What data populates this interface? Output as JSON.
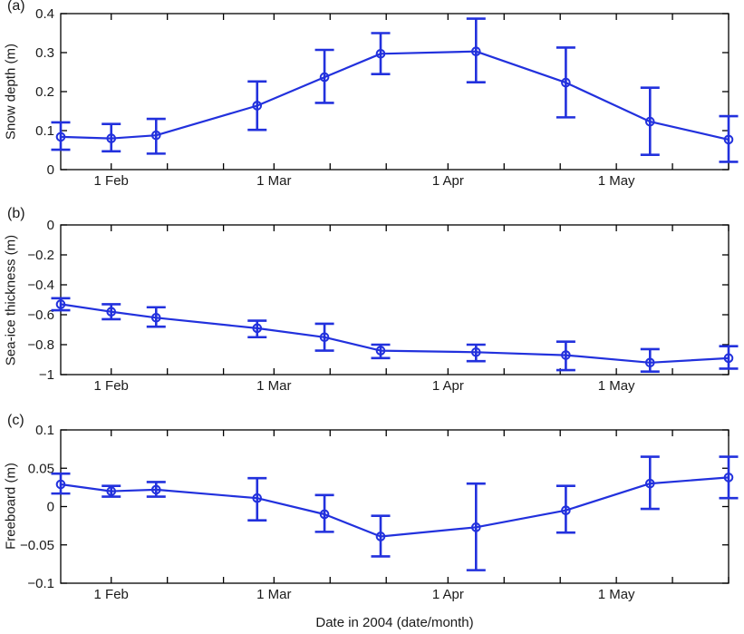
{
  "figure": {
    "background": "#ffffff",
    "accent_color": "#2231dd",
    "axis_color": "#000000",
    "text_color": "#1a1a1a"
  },
  "x_axis": {
    "label": "Date in 2004 (date/month)",
    "xlim_days": [
      23,
      142
    ],
    "major_ticks": [
      {
        "day": 32,
        "label": "1 Feb"
      },
      {
        "day": 61,
        "label": "1 Mar"
      },
      {
        "day": 92,
        "label": "1 Apr"
      },
      {
        "day": 122,
        "label": "1 May"
      }
    ],
    "minor_tick_days": [
      42,
      52,
      71,
      81,
      102,
      112,
      132,
      142
    ]
  },
  "chart_data": [
    {
      "type": "line",
      "panel_label": "(a)",
      "ylabel": "Snow depth (m)",
      "ylim": [
        0,
        0.4
      ],
      "yticks": [
        0,
        0.1,
        0.2,
        0.3,
        0.4
      ],
      "ytick_labels": [
        "0",
        "0.1",
        "0.2",
        "0.3",
        "0.4"
      ],
      "x_dates": [
        "23 Jan",
        "1 Feb",
        "9 Feb",
        "27 Feb",
        "10 Mar",
        "20 Mar",
        "6 Apr",
        "22 Apr",
        "7 May",
        "21 May"
      ],
      "x_days": [
        23,
        32,
        40,
        58,
        70,
        80,
        97,
        113,
        128,
        142
      ],
      "values": [
        0.084,
        0.08,
        0.088,
        0.164,
        0.237,
        0.297,
        0.303,
        0.223,
        0.123,
        0.077
      ],
      "err_high": [
        0.121,
        0.117,
        0.13,
        0.226,
        0.307,
        0.35,
        0.387,
        0.313,
        0.21,
        0.137
      ],
      "err_low": [
        0.051,
        0.047,
        0.041,
        0.102,
        0.171,
        0.245,
        0.224,
        0.134,
        0.038,
        0.02
      ]
    },
    {
      "type": "line",
      "panel_label": "(b)",
      "ylabel": "Sea-ice thickness (m)",
      "ylim": [
        -1,
        0
      ],
      "yticks": [
        -1,
        -0.8,
        -0.6,
        -0.4,
        -0.2,
        0
      ],
      "ytick_labels": [
        "−1",
        "−0.8",
        "−0.6",
        "−0.4",
        "−0.2",
        "0"
      ],
      "x_dates": [
        "23 Jan",
        "1 Feb",
        "9 Feb",
        "27 Feb",
        "10 Mar",
        "20 Mar",
        "6 Apr",
        "22 Apr",
        "7 May",
        "21 May"
      ],
      "x_days": [
        23,
        32,
        40,
        58,
        70,
        80,
        97,
        113,
        128,
        142
      ],
      "values": [
        -0.53,
        -0.58,
        -0.62,
        -0.69,
        -0.75,
        -0.84,
        -0.85,
        -0.87,
        -0.92,
        -0.89
      ],
      "err_high": [
        -0.49,
        -0.53,
        -0.55,
        -0.64,
        -0.66,
        -0.8,
        -0.8,
        -0.78,
        -0.83,
        -0.81
      ],
      "err_low": [
        -0.57,
        -0.63,
        -0.68,
        -0.75,
        -0.84,
        -0.89,
        -0.91,
        -0.97,
        -0.98,
        -0.96
      ]
    },
    {
      "type": "line",
      "panel_label": "(c)",
      "ylabel": "Freeboard (m)",
      "ylim": [
        -0.1,
        0.1
      ],
      "yticks": [
        -0.1,
        -0.05,
        0,
        0.05,
        0.1
      ],
      "ytick_labels": [
        "−0.1",
        "−0.05",
        "0",
        "0.05",
        "0.1"
      ],
      "x_dates": [
        "23 Jan",
        "1 Feb",
        "9 Feb",
        "27 Feb",
        "10 Mar",
        "20 Mar",
        "6 Apr",
        "22 Apr",
        "7 May",
        "21 May"
      ],
      "x_days": [
        23,
        32,
        40,
        58,
        70,
        80,
        97,
        113,
        128,
        142
      ],
      "values": [
        0.029,
        0.02,
        0.022,
        0.011,
        -0.01,
        -0.039,
        -0.027,
        -0.005,
        0.03,
        0.038
      ],
      "err_high": [
        0.043,
        0.027,
        0.032,
        0.037,
        0.015,
        -0.012,
        0.03,
        0.027,
        0.065,
        0.065
      ],
      "err_low": [
        0.017,
        0.013,
        0.013,
        -0.018,
        -0.033,
        -0.065,
        -0.083,
        -0.034,
        -0.003,
        0.011
      ]
    }
  ]
}
